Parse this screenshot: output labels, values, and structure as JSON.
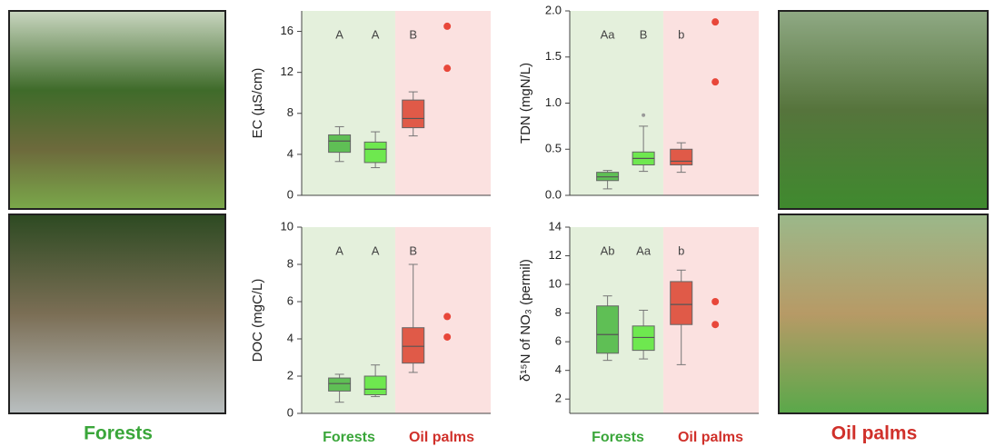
{
  "groups": [
    "Forests",
    "Oil palms"
  ],
  "chart_data": [
    {
      "type": "box",
      "ylabel": "EC (µS/cm)",
      "ylim": [
        0,
        18
      ],
      "yticks": [
        0,
        4,
        8,
        12,
        16
      ],
      "boxes": [
        {
          "letter": "A",
          "color": "#5fbf55",
          "min": 3.3,
          "q1": 4.2,
          "median": 5.3,
          "q3": 5.9,
          "max": 6.7
        },
        {
          "letter": "A",
          "color": "#6ee84f",
          "min": 2.7,
          "q1": 3.2,
          "median": 4.5,
          "q3": 5.2,
          "max": 6.2
        },
        {
          "letter": "B",
          "color": "#e05a48",
          "min": 5.8,
          "q1": 6.6,
          "median": 7.5,
          "q3": 9.3,
          "max": 10.1
        }
      ],
      "points": {
        "color": "#e8473a",
        "values": [
          16.5,
          12.4
        ]
      }
    },
    {
      "type": "box",
      "ylabel": "TDN (mgN/L)",
      "ylim": [
        0,
        2
      ],
      "yticks": [
        {
          "value": 0,
          "label": "0.0"
        },
        0.5,
        {
          "value": 1,
          "label": "1.0"
        },
        1.5,
        {
          "value": 2,
          "label": "2.0"
        }
      ],
      "boxes": [
        {
          "letter": "Aa",
          "color": "#5fbf55",
          "min": 0.07,
          "q1": 0.16,
          "median": 0.2,
          "q3": 0.25,
          "max": 0.27
        },
        {
          "letter": "B",
          "color": "#6ee84f",
          "min": 0.26,
          "q1": 0.33,
          "median": 0.4,
          "q3": 0.47,
          "max": 0.75,
          "outliers": [
            0.87
          ]
        },
        {
          "letter": "b",
          "color": "#e05a48",
          "min": 0.25,
          "q1": 0.33,
          "median": 0.37,
          "q3": 0.5,
          "max": 0.57
        }
      ],
      "points": {
        "color": "#e8473a",
        "values": [
          1.88,
          1.23
        ]
      }
    },
    {
      "type": "box",
      "ylabel": "DOC (mgC/L)",
      "ylim": [
        0,
        10
      ],
      "yticks": [
        0,
        2,
        4,
        6,
        8,
        10
      ],
      "boxes": [
        {
          "letter": "A",
          "color": "#5fbf55",
          "min": 0.6,
          "q1": 1.2,
          "median": 1.6,
          "q3": 1.9,
          "max": 2.1
        },
        {
          "letter": "A",
          "color": "#6ee84f",
          "min": 0.9,
          "q1": 1.0,
          "median": 1.3,
          "q3": 2.0,
          "max": 2.6
        },
        {
          "letter": "B",
          "color": "#e05a48",
          "min": 2.2,
          "q1": 2.7,
          "median": 3.6,
          "q3": 4.6,
          "max": 8.0
        }
      ],
      "points": {
        "color": "#e8473a",
        "values": [
          5.2,
          4.1
        ]
      }
    },
    {
      "type": "box",
      "ylabel": "δ¹⁵N of NO₃ (permil)",
      "ylim": [
        1,
        14
      ],
      "yticks": [
        2,
        4,
        6,
        8,
        10,
        12,
        14
      ],
      "boxes": [
        {
          "letter": "Ab",
          "color": "#5fbf55",
          "min": 4.7,
          "q1": 5.2,
          "median": 6.5,
          "q3": 8.5,
          "max": 9.2
        },
        {
          "letter": "Aa",
          "color": "#6ee84f",
          "min": 4.8,
          "q1": 5.4,
          "median": 6.3,
          "q3": 7.1,
          "max": 8.2
        },
        {
          "letter": "b",
          "color": "#e05a48",
          "min": 4.4,
          "q1": 7.2,
          "median": 8.6,
          "q3": 10.2,
          "max": 11.0
        }
      ],
      "points": {
        "color": "#e8473a",
        "values": [
          8.8,
          7.2
        ]
      }
    }
  ]
}
